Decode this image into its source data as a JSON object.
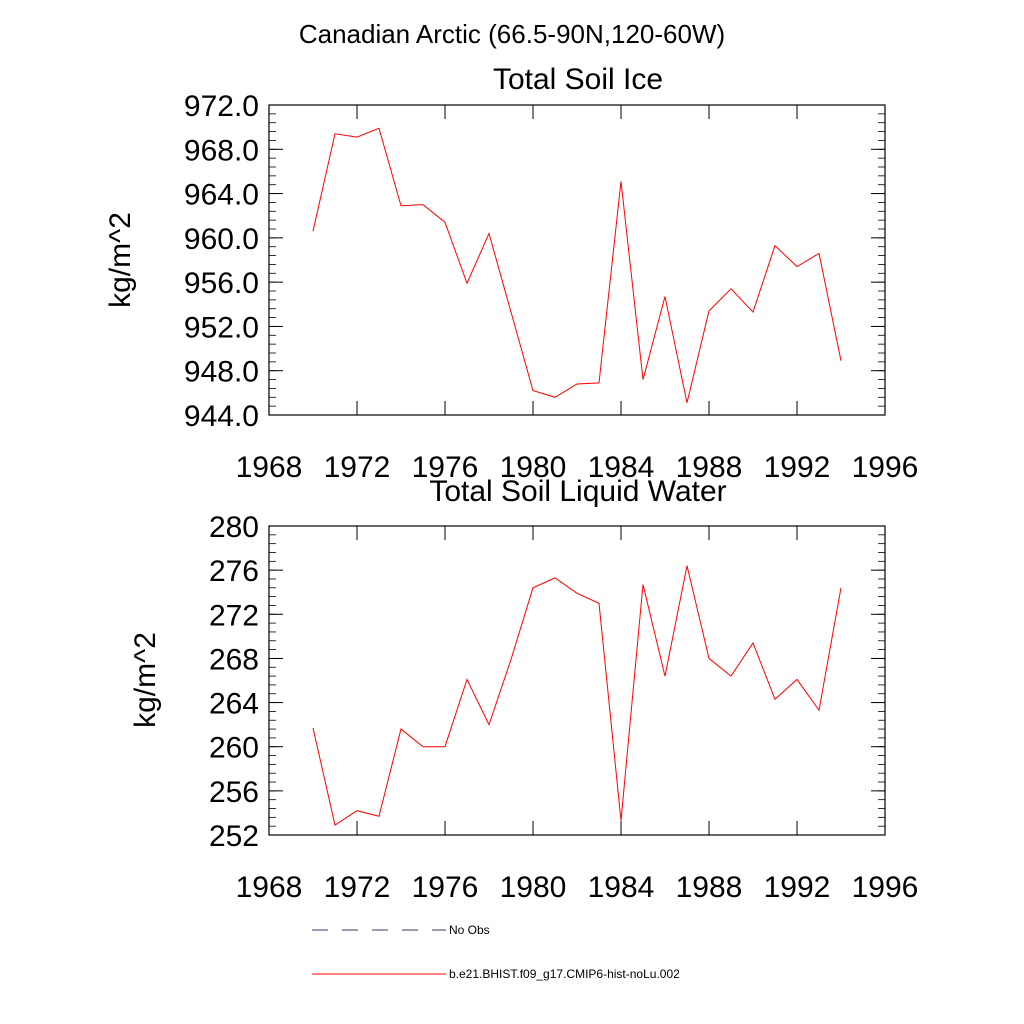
{
  "suptitle": "Canadian Arctic (66.5-90N,120-60W)",
  "colors": {
    "model_line": "#ff0000",
    "obs_line": "#3a3a6a",
    "axis": "#000000"
  },
  "chart_data": [
    {
      "type": "line",
      "title": "Total Soil Ice",
      "xlabel": "",
      "ylabel": "kg/m^2",
      "xlim": [
        1968,
        1996
      ],
      "ylim": [
        944,
        972
      ],
      "xticks": [
        1968,
        1972,
        1976,
        1980,
        1984,
        1988,
        1992,
        1996
      ],
      "yticks": [
        944,
        948,
        952,
        956,
        960,
        964,
        968,
        972
      ],
      "ytick_labels": [
        "944.0",
        "948.0",
        "952.0",
        "956.0",
        "960.0",
        "964.0",
        "968.0",
        "972.0"
      ],
      "x_minor_step": 4,
      "y_minor_step": 0.8,
      "grid": false,
      "series": [
        {
          "name": "b.e21.BHIST.f09_g17.CMIP6-hist-noLu.002",
          "x": [
            1970,
            1971,
            1972,
            1973,
            1974,
            1975,
            1976,
            1977,
            1978,
            1979,
            1980,
            1981,
            1982,
            1983,
            1984,
            1985,
            1986,
            1987,
            1988,
            1989,
            1990,
            1991,
            1992,
            1993,
            1994
          ],
          "y": [
            960.6,
            969.4,
            969.1,
            969.9,
            962.9,
            963.0,
            961.4,
            955.9,
            960.4,
            953.3,
            946.2,
            945.6,
            946.8,
            946.9,
            965.1,
            947.2,
            954.7,
            945.1,
            953.4,
            955.4,
            953.3,
            959.3,
            957.4,
            958.6,
            948.9
          ]
        }
      ]
    },
    {
      "type": "line",
      "title": "Total Soil Liquid Water",
      "xlabel": "",
      "ylabel": "kg/m^2",
      "xlim": [
        1968,
        1996
      ],
      "ylim": [
        252,
        280
      ],
      "xticks": [
        1968,
        1972,
        1976,
        1980,
        1984,
        1988,
        1992,
        1996
      ],
      "yticks": [
        252,
        256,
        260,
        264,
        268,
        272,
        276,
        280
      ],
      "ytick_labels": [
        "252",
        "256",
        "260",
        "264",
        "268",
        "272",
        "276",
        "280"
      ],
      "x_minor_step": 4,
      "y_minor_step": 0.8,
      "grid": false,
      "series": [
        {
          "name": "b.e21.BHIST.f09_g17.CMIP6-hist-noLu.002",
          "x": [
            1970,
            1971,
            1972,
            1973,
            1974,
            1975,
            1976,
            1977,
            1978,
            1979,
            1980,
            1981,
            1982,
            1983,
            1984,
            1985,
            1986,
            1987,
            1988,
            1989,
            1990,
            1991,
            1992,
            1993,
            1994
          ],
          "y": [
            261.7,
            252.9,
            254.2,
            253.7,
            261.6,
            260.0,
            260.0,
            266.1,
            262.0,
            267.9,
            274.4,
            275.3,
            273.9,
            273.0,
            253.3,
            274.7,
            266.4,
            276.4,
            268.0,
            266.4,
            269.4,
            264.3,
            266.1,
            263.3,
            274.4
          ]
        }
      ]
    }
  ],
  "legend": {
    "placement": "bottom",
    "items": [
      {
        "label": "No Obs",
        "style": "dashed",
        "color": "#3a3a6a"
      },
      {
        "label": "b.e21.BHIST.f09_g17.CMIP6-hist-noLu.002",
        "style": "solid",
        "color": "#ff0000"
      }
    ]
  }
}
